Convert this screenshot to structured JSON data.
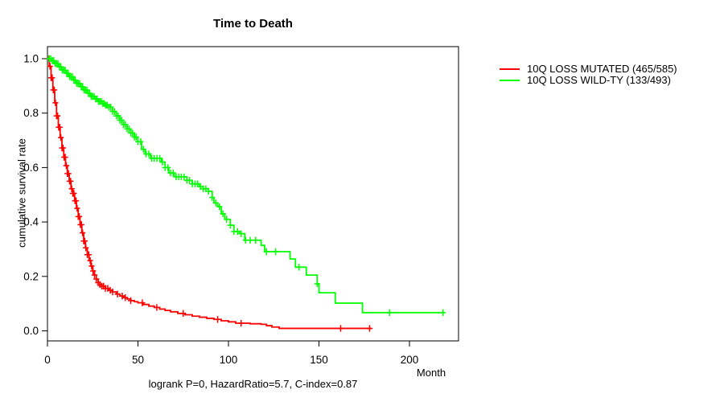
{
  "title": "Time to Death",
  "ylabel": "cumulative survival rate",
  "xlabel": "Month",
  "footer": "logrank P=0, HazardRatio=5.7, C-index=0.87",
  "colors": {
    "mutated": "#ff0000",
    "wildtype": "#00ff00",
    "axis": "#000000"
  },
  "legend": {
    "items": [
      {
        "label": "10Q LOSS MUTATED (465/585)",
        "color": "#ff0000"
      },
      {
        "label": "10Q LOSS WILD-TY (133/493)",
        "color": "#00ff00"
      }
    ]
  },
  "chart_data": {
    "type": "line",
    "subtype": "kaplan-meier-step",
    "title": "Time to Death",
    "xlabel": "Month",
    "ylabel": "cumulative survival rate",
    "xlim": [
      0,
      227
    ],
    "ylim": [
      0,
      1.0
    ],
    "xticks": [
      0,
      50,
      100,
      150,
      200
    ],
    "xtick_labels": [
      "0",
      "50",
      "100",
      "150",
      "200"
    ],
    "yticks": [
      0.0,
      0.2,
      0.4,
      0.6,
      0.8,
      1.0
    ],
    "ytick_labels": [
      "0.0",
      "0.2",
      "0.4",
      "0.6",
      "0.8",
      "1.0"
    ],
    "grid": false,
    "legend_position": "right-outside",
    "annotation": "logrank P=0, HazardRatio=5.7, C-index=0.87",
    "series": [
      {
        "name": "10Q LOSS MUTATED (465/585)",
        "color": "#ff0000",
        "events": "465/585",
        "steps": [
          [
            0,
            1.0
          ],
          [
            1,
            0.972
          ],
          [
            2,
            0.93
          ],
          [
            3,
            0.885
          ],
          [
            4,
            0.838
          ],
          [
            5,
            0.79
          ],
          [
            6,
            0.748
          ],
          [
            7,
            0.71
          ],
          [
            8,
            0.672
          ],
          [
            9,
            0.638
          ],
          [
            10,
            0.607
          ],
          [
            11,
            0.578
          ],
          [
            12,
            0.55
          ],
          [
            13,
            0.522
          ],
          [
            14,
            0.505
          ],
          [
            15,
            0.478
          ],
          [
            16,
            0.45
          ],
          [
            17,
            0.42
          ],
          [
            18,
            0.39
          ],
          [
            19,
            0.36
          ],
          [
            20,
            0.33
          ],
          [
            21,
            0.305
          ],
          [
            22,
            0.28
          ],
          [
            23,
            0.258
          ],
          [
            24,
            0.238
          ],
          [
            25,
            0.22
          ],
          [
            26,
            0.205
          ],
          [
            27,
            0.19
          ],
          [
            28,
            0.177
          ],
          [
            29,
            0.17
          ],
          [
            30,
            0.164
          ],
          [
            32,
            0.156
          ],
          [
            34,
            0.149
          ],
          [
            36,
            0.143
          ],
          [
            38,
            0.135
          ],
          [
            40,
            0.128
          ],
          [
            42,
            0.122
          ],
          [
            44,
            0.117
          ],
          [
            46,
            0.111
          ],
          [
            48,
            0.107
          ],
          [
            50,
            0.103
          ],
          [
            53,
            0.097
          ],
          [
            56,
            0.091
          ],
          [
            59,
            0.086
          ],
          [
            62,
            0.08
          ],
          [
            65,
            0.075
          ],
          [
            68,
            0.07
          ],
          [
            72,
            0.064
          ],
          [
            76,
            0.059
          ],
          [
            80,
            0.054
          ],
          [
            84,
            0.05
          ],
          [
            88,
            0.046
          ],
          [
            92,
            0.042
          ],
          [
            96,
            0.037
          ],
          [
            100,
            0.033
          ],
          [
            104,
            0.028
          ],
          [
            112,
            0.026
          ],
          [
            118,
            0.024
          ],
          [
            121,
            0.019
          ],
          [
            124,
            0.014
          ],
          [
            128,
            0.009
          ],
          [
            179,
            0.009
          ]
        ],
        "censor_times": [
          0.8,
          1.4,
          2,
          2.6,
          3.2,
          3.8,
          4.4,
          5,
          5.6,
          6.2,
          6.8,
          7.4,
          8,
          8.6,
          9.2,
          9.8,
          10.4,
          11,
          11.6,
          12.2,
          12.8,
          13.4,
          14,
          14.6,
          15.2,
          15.8,
          16.4,
          17,
          17.6,
          18.2,
          18.8,
          19.4,
          20,
          20.6,
          21.2,
          22,
          22.8,
          23.6,
          24.4,
          25.2,
          26,
          27,
          28,
          29,
          30,
          31,
          32,
          33.3,
          34.7,
          36,
          38.7,
          41.3,
          43,
          46,
          52.4,
          60.4,
          75,
          94,
          107,
          162,
          178
        ]
      },
      {
        "name": "10Q LOSS WILD-TY (133/493)",
        "color": "#00ff00",
        "events": "133/493",
        "steps": [
          [
            0,
            1.0
          ],
          [
            2,
            0.993
          ],
          [
            4,
            0.982
          ],
          [
            6,
            0.97
          ],
          [
            8,
            0.958
          ],
          [
            10,
            0.946
          ],
          [
            12,
            0.934
          ],
          [
            14,
            0.921
          ],
          [
            16,
            0.909
          ],
          [
            18,
            0.897
          ],
          [
            20,
            0.885
          ],
          [
            22,
            0.873
          ],
          [
            24,
            0.861
          ],
          [
            26,
            0.852
          ],
          [
            28,
            0.843
          ],
          [
            30,
            0.835
          ],
          [
            32,
            0.829
          ],
          [
            34,
            0.822
          ],
          [
            36,
            0.806
          ],
          [
            38,
            0.79
          ],
          [
            40,
            0.774
          ],
          [
            42,
            0.758
          ],
          [
            44,
            0.742
          ],
          [
            46,
            0.727
          ],
          [
            48,
            0.712
          ],
          [
            50,
            0.695
          ],
          [
            52,
            0.667
          ],
          [
            54,
            0.65
          ],
          [
            57,
            0.634
          ],
          [
            63,
            0.62
          ],
          [
            65,
            0.6
          ],
          [
            67,
            0.58
          ],
          [
            70,
            0.566
          ],
          [
            77,
            0.553
          ],
          [
            80,
            0.54
          ],
          [
            84,
            0.53
          ],
          [
            86,
            0.522
          ],
          [
            89,
            0.513
          ],
          [
            91,
            0.49
          ],
          [
            92,
            0.47
          ],
          [
            94,
            0.456
          ],
          [
            96,
            0.43
          ],
          [
            98,
            0.41
          ],
          [
            101,
            0.388
          ],
          [
            103,
            0.365
          ],
          [
            106,
            0.357
          ],
          [
            109,
            0.333
          ],
          [
            118,
            0.314
          ],
          [
            120,
            0.291
          ],
          [
            134,
            0.264
          ],
          [
            137,
            0.234
          ],
          [
            143,
            0.205
          ],
          [
            149,
            0.173
          ],
          [
            150,
            0.14
          ],
          [
            159,
            0.102
          ],
          [
            174,
            0.067
          ],
          [
            218,
            0.067
          ]
        ],
        "censor_times": [
          1,
          1.8,
          2.6,
          3.4,
          4.2,
          5,
          5.8,
          6.6,
          7.4,
          8.2,
          9,
          9.8,
          10.6,
          11.4,
          12.2,
          13,
          13.8,
          14.6,
          15.4,
          16.2,
          17,
          17.8,
          18.6,
          19.4,
          20.2,
          21,
          21.8,
          22.6,
          23.4,
          24.2,
          25,
          25.8,
          26.6,
          27.4,
          28.2,
          29,
          29.8,
          30.6,
          31.4,
          32.2,
          33,
          34,
          35,
          36,
          37,
          38,
          39,
          40,
          41,
          42,
          43,
          44,
          45,
          46,
          47,
          48,
          49,
          50,
          51.5,
          53,
          54.5,
          56,
          57.5,
          59,
          60.5,
          62,
          63.5,
          65,
          66.5,
          68,
          69.5,
          71,
          72.5,
          74,
          75.5,
          77,
          78.5,
          80,
          81.5,
          83,
          84.5,
          86,
          87.5,
          89,
          91,
          93,
          95,
          97,
          99,
          101,
          103,
          105,
          107,
          109.5,
          112,
          115,
          121,
          126,
          139,
          149,
          189,
          218.5
        ]
      }
    ]
  }
}
